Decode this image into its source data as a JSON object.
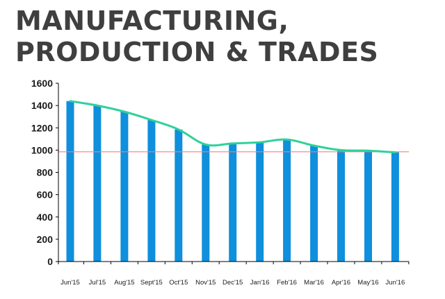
{
  "title_lines": [
    "MANUFACTURING,",
    "PRODUCTION & TRADES"
  ],
  "chart_data": {
    "type": "bar",
    "title": "MANUFACTURING, PRODUCTION & TRADES",
    "categories": [
      "Jun'15",
      "Jul'15",
      "Aug'15",
      "Sept'15",
      "Oct'15",
      "Nov'15",
      "Dec'15",
      "Jan'16",
      "Feb'16",
      "Mar'16",
      "Apr'16",
      "May'16",
      "Jun'16"
    ],
    "series": [
      {
        "type": "bar",
        "color": "#0f8fdc",
        "values": [
          1440,
          1400,
          1345,
          1270,
          1185,
          1050,
          1060,
          1070,
          1095,
          1040,
          1000,
          995,
          980
        ]
      },
      {
        "type": "line",
        "color": "#2fd199",
        "values": [
          1440,
          1400,
          1345,
          1270,
          1185,
          1050,
          1060,
          1070,
          1095,
          1040,
          1000,
          995,
          980
        ]
      }
    ],
    "reference_line": {
      "value": 985,
      "color": "#f28080"
    },
    "ylim": [
      0,
      1600
    ],
    "yticks": [
      0,
      200,
      400,
      600,
      800,
      1000,
      1200,
      1400,
      1600
    ],
    "grid": false
  }
}
